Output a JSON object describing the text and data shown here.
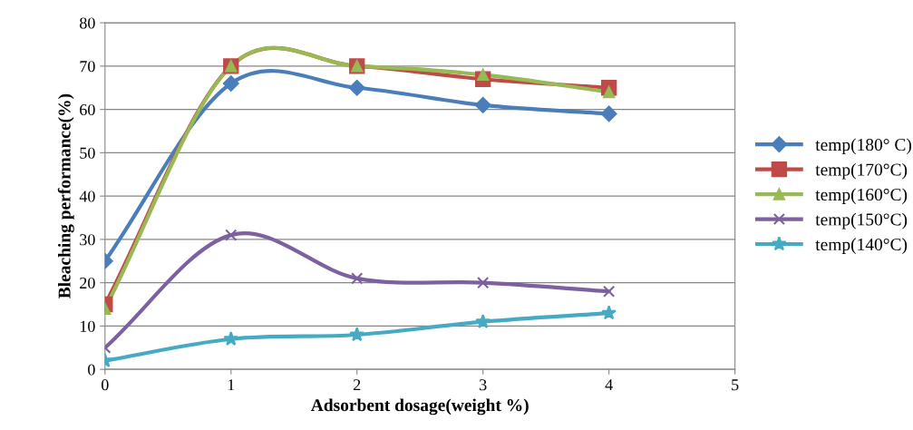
{
  "chart_data": {
    "type": "line",
    "xlabel": "Adsorbent dosage(weight %)",
    "ylabel": "Bleaching performance(%)",
    "x": [
      0,
      1,
      2,
      3,
      4
    ],
    "xlim": [
      0,
      5
    ],
    "xticks": [
      0,
      1,
      2,
      3,
      4,
      5
    ],
    "ylim": [
      0,
      80
    ],
    "yticks": [
      0,
      10,
      20,
      30,
      40,
      50,
      60,
      70,
      80
    ],
    "grid": "y",
    "legend": "right",
    "series": [
      {
        "name": "temp(180° C)",
        "color": "#4a7ebb",
        "marker": "diamond",
        "values": [
          25,
          66,
          65,
          61,
          59
        ]
      },
      {
        "name": "temp(170°C)",
        "color": "#be4b48",
        "marker": "square",
        "values": [
          15,
          70,
          70,
          67,
          65
        ]
      },
      {
        "name": "temp(160°C)",
        "color": "#98b954",
        "marker": "triangle",
        "values": [
          14,
          70,
          70,
          68,
          64
        ]
      },
      {
        "name": "temp(150°C)",
        "color": "#7d60a0",
        "marker": "cross",
        "values": [
          5,
          31,
          21,
          20,
          18
        ]
      },
      {
        "name": "temp(140°C)",
        "color": "#46aac5",
        "marker": "star",
        "values": [
          2,
          7,
          8,
          11,
          13
        ]
      }
    ]
  }
}
